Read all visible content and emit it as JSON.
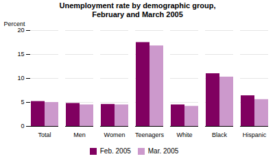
{
  "chart_data": {
    "type": "bar",
    "title": "Unemployment rate by demographic group,",
    "subtitle": "February and March 2005",
    "ylabel": "Percent",
    "categories": [
      "Total",
      "Men",
      "Women",
      "Teenagers",
      "White",
      "Black",
      "Hispanic"
    ],
    "series": [
      {
        "name": "Feb. 2005",
        "color": "#800060",
        "values": [
          5.2,
          4.8,
          4.6,
          17.5,
          4.5,
          11.0,
          6.4
        ]
      },
      {
        "name": "Mar. 2005",
        "color": "#CC99CC",
        "values": [
          5.0,
          4.5,
          4.5,
          16.8,
          4.2,
          10.3,
          5.6
        ]
      }
    ],
    "ylim": [
      0,
      20
    ],
    "yticks": [
      0,
      5,
      10,
      15,
      20
    ],
    "grid": true,
    "legend": "bottom"
  }
}
